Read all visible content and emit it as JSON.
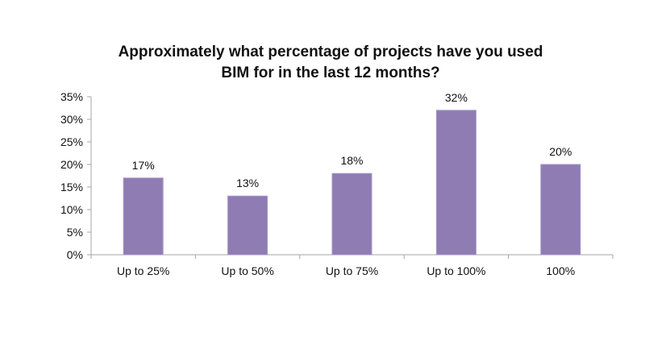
{
  "chart_data": {
    "type": "bar",
    "title_lines": [
      "Approximately what percentage of projects have you used",
      "BIM for in the last 12 months?"
    ],
    "categories": [
      "Up to 25%",
      "Up to 50%",
      "Up to 75%",
      "Up to 100%",
      "100%"
    ],
    "values": [
      17,
      13,
      18,
      32,
      20
    ],
    "data_labels": [
      "17%",
      "13%",
      "18%",
      "32%",
      "20%"
    ],
    "yticks": [
      "0%",
      "5%",
      "10%",
      "15%",
      "20%",
      "25%",
      "30%",
      "35%"
    ],
    "ylim": [
      0,
      35
    ],
    "grid": false,
    "bar_color": "#8e7cb3",
    "bar_stroke": "#a896c9",
    "axis_color": "#a6a6a6"
  }
}
